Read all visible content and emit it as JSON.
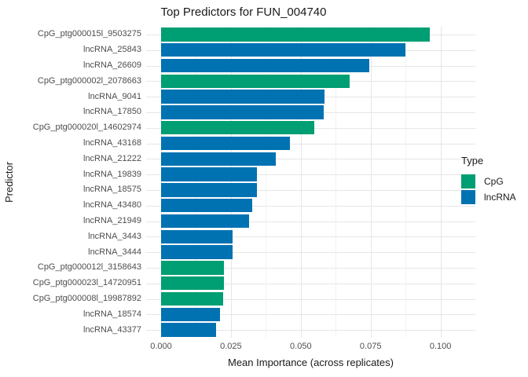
{
  "title": "Top Predictors for FUN_004740",
  "x_axis": {
    "label": "Mean Importance (across replicates)",
    "tick_labels": [
      "0.000",
      "0.025",
      "0.050",
      "0.075",
      "0.100"
    ]
  },
  "y_axis": {
    "label": "Predictor"
  },
  "legend": {
    "title": "Type",
    "entries": [
      {
        "label": "CpG",
        "color": "#009E73"
      },
      {
        "label": "lncRNA",
        "color": "#0072B2"
      }
    ]
  },
  "colors": {
    "cpg": "#009E73",
    "lncrna": "#0072B2",
    "grid_major": "#E6E6E6",
    "grid_minor": "#F2F2F2",
    "tick_text": "#4d4d4d",
    "title_text": "#1a1a1a",
    "background": "#ffffff"
  },
  "chart_data": {
    "type": "bar",
    "orientation": "horizontal",
    "title": "Top Predictors for FUN_004740",
    "xlabel": "Mean Importance (across replicates)",
    "ylabel": "Predictor",
    "xlim": [
      0,
      0.1125
    ],
    "x_ticks": [
      0,
      0.025,
      0.05,
      0.075,
      0.1
    ],
    "x_minor_ticks": [
      0.0125,
      0.0375,
      0.0625,
      0.0875,
      0.1125
    ],
    "grid": true,
    "legend_position": "right",
    "series_key": "Type",
    "bars": [
      {
        "label": "CpG_ptg000015l_9503275",
        "type": "CpG",
        "value": 0.0963
      },
      {
        "label": "lncRNA_25843",
        "type": "lncRNA",
        "value": 0.0874
      },
      {
        "label": "lncRNA_26609",
        "type": "lncRNA",
        "value": 0.0746
      },
      {
        "label": "CpG_ptg000002l_2078663",
        "type": "CpG",
        "value": 0.0675
      },
      {
        "label": "lncRNA_9041",
        "type": "lncRNA",
        "value": 0.0584
      },
      {
        "label": "lncRNA_17850",
        "type": "lncRNA",
        "value": 0.0581
      },
      {
        "label": "CpG_ptg000020l_14602974",
        "type": "CpG",
        "value": 0.0549
      },
      {
        "label": "lncRNA_43168",
        "type": "lncRNA",
        "value": 0.0461
      },
      {
        "label": "lncRNA_21222",
        "type": "lncRNA",
        "value": 0.041
      },
      {
        "label": "lncRNA_19839",
        "type": "lncRNA",
        "value": 0.0344
      },
      {
        "label": "lncRNA_18575",
        "type": "lncRNA",
        "value": 0.0343
      },
      {
        "label": "lncRNA_43480",
        "type": "lncRNA",
        "value": 0.0326
      },
      {
        "label": "lncRNA_21949",
        "type": "lncRNA",
        "value": 0.0315
      },
      {
        "label": "lncRNA_3443",
        "type": "lncRNA",
        "value": 0.0256
      },
      {
        "label": "lncRNA_3444",
        "type": "lncRNA",
        "value": 0.0256
      },
      {
        "label": "CpG_ptg000012l_3158643",
        "type": "CpG",
        "value": 0.0226
      },
      {
        "label": "CpG_ptg000023l_14720951",
        "type": "CpG",
        "value": 0.0224
      },
      {
        "label": "CpG_ptg000008l_19987892",
        "type": "CpG",
        "value": 0.0222
      },
      {
        "label": "lncRNA_18574",
        "type": "lncRNA",
        "value": 0.0211
      },
      {
        "label": "lncRNA_43377",
        "type": "lncRNA",
        "value": 0.0198
      }
    ]
  }
}
